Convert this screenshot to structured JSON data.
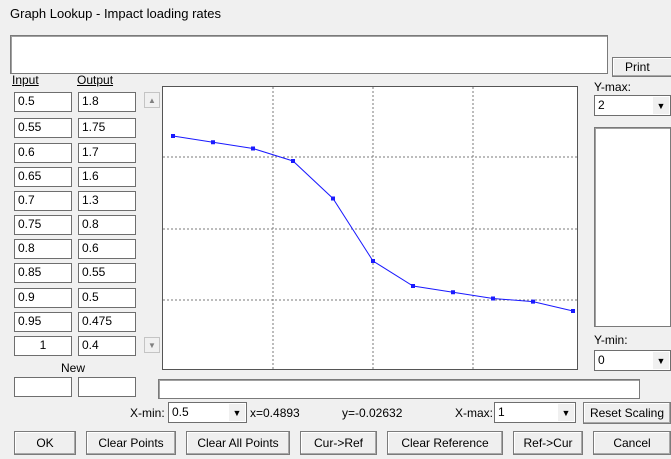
{
  "window": {
    "title": "Graph Lookup - Impact loading rates"
  },
  "buttons": {
    "print": "Print",
    "reset_scaling": "Reset Scaling",
    "ok": "OK",
    "clear_points": "Clear Points",
    "clear_all_points": "Clear All Points",
    "cur_ref": "Cur->Ref",
    "clear_reference": "Clear Reference",
    "ref_cur": "Ref->Cur",
    "cancel": "Cancel"
  },
  "table": {
    "input_header": "Input",
    "output_header": "Output",
    "new_label": "New",
    "rows": [
      {
        "input": "0.5",
        "output": "1.8"
      },
      {
        "input": "0.55",
        "output": "1.75"
      },
      {
        "input": "0.6",
        "output": "1.7"
      },
      {
        "input": "0.65",
        "output": "1.6"
      },
      {
        "input": "0.7",
        "output": "1.3"
      },
      {
        "input": "0.75",
        "output": "0.8"
      },
      {
        "input": "0.8",
        "output": "0.6"
      },
      {
        "input": "0.85",
        "output": "0.55"
      },
      {
        "input": "0.9",
        "output": "0.5"
      },
      {
        "input": "0.95",
        "output": "0.475"
      },
      {
        "input": "1",
        "output": "0.4"
      }
    ]
  },
  "axis": {
    "ymax_label": "Y-max:",
    "ymax_value": "2",
    "ymin_label": "Y-min:",
    "ymin_value": "0",
    "xmin_label": "X-min:",
    "xmin_value": "0.5",
    "xmax_label": "X-max:",
    "xmax_value": "1",
    "cursor_x": "x=0.4893",
    "cursor_y": "y=-0.02632"
  },
  "colors": {
    "line": "#1a1aff",
    "grid": "#7a7a7a"
  },
  "chart_data": {
    "type": "line",
    "x": [
      0.5,
      0.55,
      0.6,
      0.65,
      0.7,
      0.75,
      0.8,
      0.85,
      0.9,
      0.95,
      1
    ],
    "series": [
      {
        "values": [
          1.8,
          1.75,
          1.7,
          1.6,
          1.3,
          0.8,
          0.6,
          0.55,
          0.5,
          0.475,
          0.4
        ]
      }
    ],
    "xlim": [
      0.5,
      1
    ],
    "ylim": [
      0,
      2
    ],
    "grid": true
  }
}
